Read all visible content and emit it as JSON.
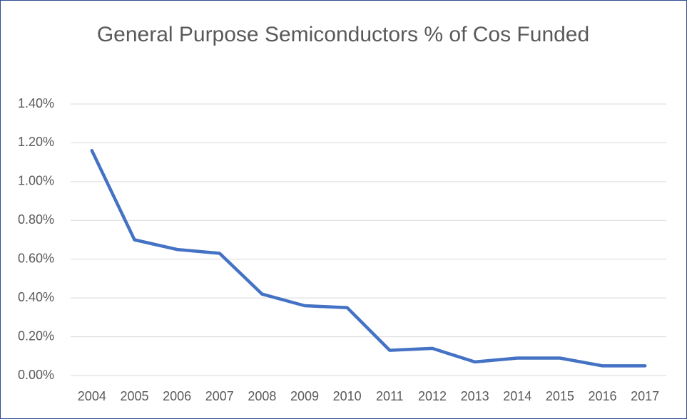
{
  "chart_data": {
    "type": "line",
    "title": "General Purpose Semiconductors % of Cos Funded",
    "categories": [
      "2004",
      "2005",
      "2006",
      "2007",
      "2008",
      "2009",
      "2010",
      "2011",
      "2012",
      "2013",
      "2014",
      "2015",
      "2016",
      "2017"
    ],
    "series": [
      {
        "name": "General Purpose Semiconductors % of Cos Funded",
        "color": "#4472c4",
        "values": [
          1.16,
          0.7,
          0.65,
          0.63,
          0.42,
          0.36,
          0.35,
          0.13,
          0.14,
          0.07,
          0.09,
          0.09,
          0.05,
          0.05
        ]
      }
    ],
    "ylim": [
      0,
      1.4
    ],
    "yticks": [
      {
        "value": 0,
        "label": "0.00%"
      },
      {
        "value": 0.2,
        "label": "0.20%"
      },
      {
        "value": 0.4,
        "label": "0.40%"
      },
      {
        "value": 0.6,
        "label": "0.60%"
      },
      {
        "value": 0.8,
        "label": "0.80%"
      },
      {
        "value": 1.0,
        "label": "1.00%"
      },
      {
        "value": 1.2,
        "label": "1.20%"
      },
      {
        "value": 1.4,
        "label": "1.40%"
      }
    ],
    "grid": true
  }
}
